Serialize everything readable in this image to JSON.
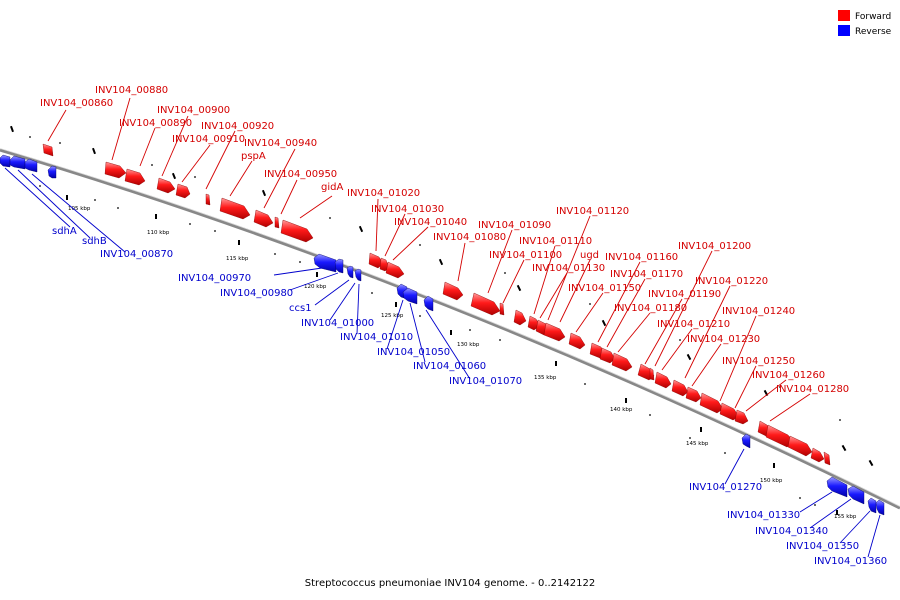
{
  "legend": {
    "forward": {
      "label": "Forward",
      "color": "#ff0000"
    },
    "reverse": {
      "label": "Reverse",
      "color": "#0000ff"
    }
  },
  "caption": "Streptococcus pneumoniae INV104 genome. - 0..2142122",
  "scale": {
    "ticks": [
      "105 kbp",
      "110 kbp",
      "115 kbp",
      "120 kbp",
      "125 kbp",
      "130 kbp",
      "135 kbp",
      "140 kbp",
      "145 kbp",
      "150 kbp",
      "155 kbp"
    ]
  },
  "forward_labels": [
    "INV104_00880",
    "INV104_00860",
    "INV104_00900",
    "INV104_00890",
    "INV104_00920",
    "INV104_00910",
    "INV104_00940",
    "pspA",
    "INV104_00950",
    "gidA",
    "INV104_01020",
    "INV104_01030",
    "INV104_01040",
    "INV104_01120",
    "INV104_01090",
    "INV104_01080",
    "INV104_01110",
    "INV104_01100",
    "ugd",
    "INV104_01130",
    "INV104_01200",
    "INV104_01160",
    "INV104_01170",
    "INV104_01150",
    "INV104_01220",
    "INV104_01190",
    "INV104_01180",
    "INV104_01240",
    "INV104_01210",
    "INV104_01230",
    "INV104_01250",
    "INV104_01260",
    "INV104_01280"
  ],
  "reverse_labels": [
    "sdhA",
    "sdhB",
    "INV104_00870",
    "INV104_00970",
    "INV104_00980",
    "ccs1",
    "INV104_01000",
    "INV104_01010",
    "INV104_01050",
    "INV104_01060",
    "INV104_01070",
    "INV104_01270",
    "INV104_01330",
    "INV104_01340",
    "INV104_01350",
    "INV104_01360"
  ]
}
